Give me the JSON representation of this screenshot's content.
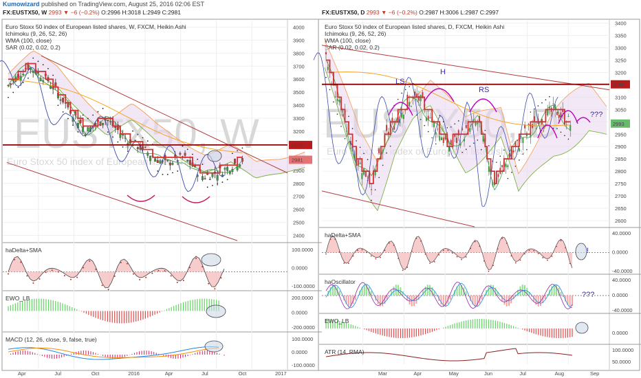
{
  "header": {
    "author": "Kumowizard",
    "published": "published on TradingView.com, August 25, 2016 02:06 EST"
  },
  "left": {
    "symbol": "FX:EUSTX50, W",
    "last": "2993",
    "change": "−6 (−0.2%)",
    "O": "O:2996",
    "H": "H:3018",
    "L": "L:2949",
    "C": "C:2981",
    "legend": [
      "Euro Stoxx 50 index of European listed shares, W, FXCM, Heikin Ashi",
      "Ichimoku (9, 26, 52, 26)",
      "WMA (100, close)",
      "SAR (0.02, 0.02, 0.2)"
    ],
    "watermark": "EUSTX50, W",
    "watermark2": "Euro Stoxx 50 index of European listed shares",
    "price_ticks": [
      "4000",
      "3900",
      "3800",
      "3700",
      "3600",
      "3500",
      "3400",
      "3300",
      "3200",
      "3100",
      "3000",
      "2900",
      "2800",
      "2700",
      "2600",
      "2500",
      "2400"
    ],
    "price_flags": [
      {
        "text": "3095",
        "color": "#b71c1c"
      },
      {
        "text": "2981",
        "color": "#e57373"
      }
    ],
    "panes": [
      {
        "name": "haDelta+SMA",
        "ticks": [
          "100.0000",
          "0.0000",
          "-100.0000"
        ]
      },
      {
        "name": "EWO_LB",
        "ticks": [
          "200.0000",
          "0.0000",
          "-200.0000"
        ]
      },
      {
        "name": "MACD (12, 26, close, 9, false, true)",
        "ticks": [
          "100.0000",
          "0.0000",
          "-100.0000"
        ]
      }
    ],
    "x_ticks": [
      "Apr",
      "Jul",
      "Oct",
      "2016",
      "Apr",
      "Jul",
      "Oct",
      "2017"
    ]
  },
  "right": {
    "symbol": "FX:EUSTX50, D",
    "last": "2993",
    "change": "−6 (−0.2%)",
    "O": "O:2987",
    "H": "H:3006",
    "L": "L:2987",
    "C": "C:2997",
    "legend": [
      "Euro Stoxx 50 index of European listed shares, D, FXCM, Heikin Ashi",
      "Ichimoku (9, 26, 52, 26)",
      "WMA (100, close)",
      "SAR (0.02, 0.02, 0.2)"
    ],
    "watermark": "EUSTX50, D",
    "watermark2": "Euro Stoxx 50 index of European listed shares",
    "price_ticks": [
      "3400",
      "3350",
      "3300",
      "3250",
      "3200",
      "3150",
      "3100",
      "3050",
      "3000",
      "2950",
      "2900",
      "2850",
      "2800",
      "2750",
      "2700",
      "2650",
      "2600"
    ],
    "price_flags": [
      {
        "text": "3152",
        "color": "#b71c1c"
      },
      {
        "text": "2993",
        "color": "#66bb6a"
      }
    ],
    "annotations": [
      "LS",
      "H",
      "RS",
      "???",
      "!",
      "???"
    ],
    "panes": [
      {
        "name": "haDelta+SMA",
        "ticks": [
          "40.0000",
          "0.0000",
          "-40.0000"
        ]
      },
      {
        "name": "haOscillator",
        "ticks": [
          "40.0000",
          "0.0000",
          "-40.0000"
        ]
      },
      {
        "name": "EWO_LB",
        "ticks": [
          "0.0000"
        ]
      },
      {
        "name": "ATR (14, RMA)",
        "ticks": [
          "100.0000",
          "50.0000"
        ]
      }
    ],
    "x_ticks": [
      "Mar",
      "Apr",
      "May",
      "Jun",
      "Jul",
      "Aug",
      "Sep"
    ]
  },
  "chart_data": [
    {
      "type": "candlestick",
      "title": "Euro Stoxx 50 index of European listed shares, W, FXCM, Heikin Ashi",
      "ylim": [
        2350,
        4050
      ],
      "x": [
        "Apr",
        "Jul",
        "Oct",
        "2016",
        "Apr",
        "Jul",
        "Oct",
        "2017"
      ],
      "close_approx": [
        3550,
        3700,
        3600,
        3400,
        3200,
        3300,
        3150,
        3050,
        2950,
        3000,
        2850,
        2900,
        2981
      ],
      "levels": {
        "horizontal_resistance": 3095,
        "last": 2981
      }
    },
    {
      "type": "candlestick",
      "title": "Euro Stoxx 50 index of European listed shares, D, FXCM, Heikin Ashi",
      "ylim": [
        2575,
        3410
      ],
      "x": [
        "Mar",
        "Apr",
        "May",
        "Jun",
        "Jul",
        "Aug",
        "Sep"
      ],
      "close_approx": [
        3250,
        3050,
        2850,
        2750,
        2950,
        3050,
        3100,
        3000,
        2900,
        2950,
        3000,
        2750,
        2850,
        2950,
        3000,
        3050,
        2993
      ],
      "levels": {
        "horizontal_resistance": 3152,
        "last": 2993
      }
    }
  ]
}
